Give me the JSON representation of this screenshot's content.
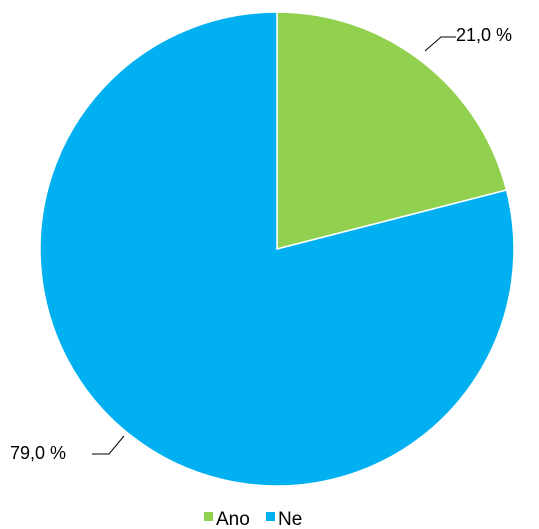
{
  "chart_data": {
    "type": "pie",
    "slices": [
      {
        "name": "Ano",
        "value": 21.0,
        "label": "21,0 %",
        "color": "#92D050"
      },
      {
        "name": "Ne",
        "value": 79.0,
        "label": "79,0 %",
        "color": "#00B0F0"
      }
    ],
    "start_angle": "12 o'clock",
    "direction": "clockwise",
    "legend": {
      "position": "bottom",
      "entries": [
        "Ano",
        "Ne"
      ]
    },
    "slice_border_color": "#FFFFFF"
  }
}
